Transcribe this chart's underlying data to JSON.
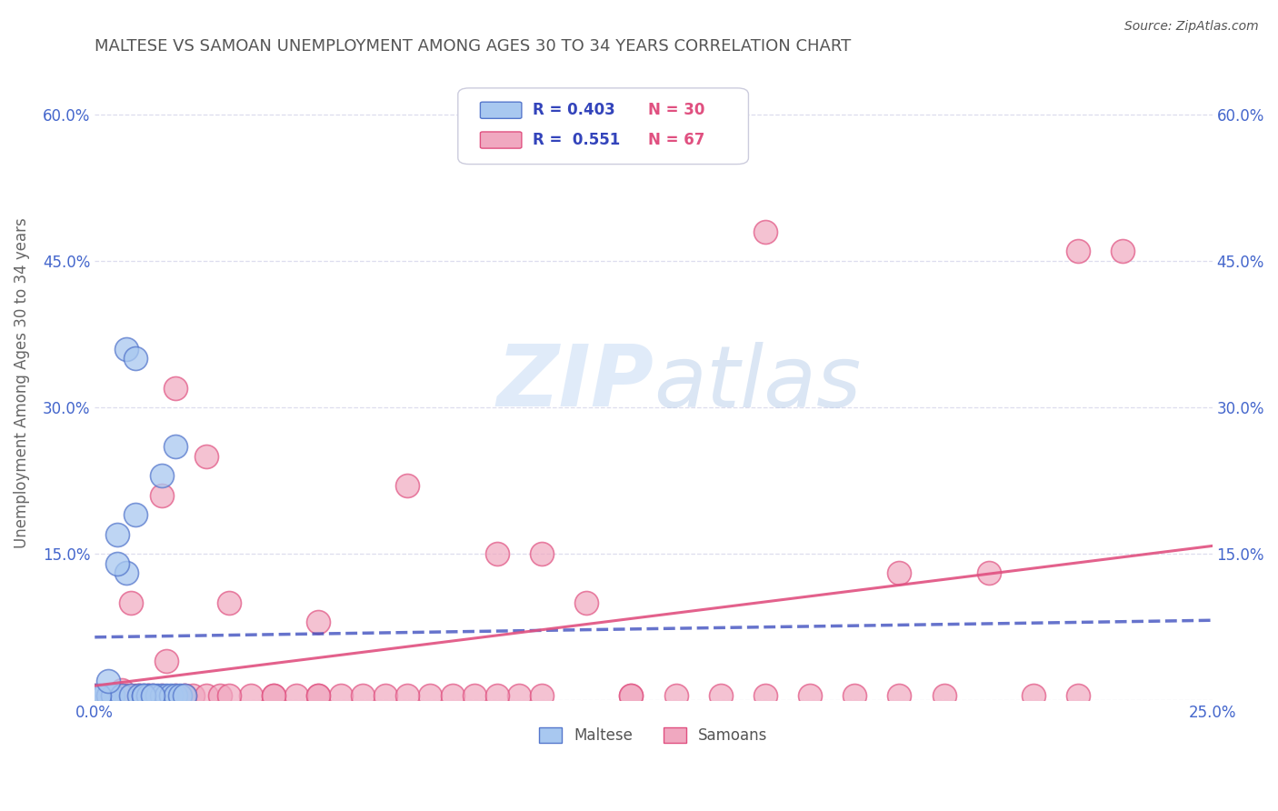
{
  "title": "MALTESE VS SAMOAN UNEMPLOYMENT AMONG AGES 30 TO 34 YEARS CORRELATION CHART",
  "source": "Source: ZipAtlas.com",
  "ylabel": "Unemployment Among Ages 30 to 34 years",
  "xlim": [
    0.0,
    0.25
  ],
  "ylim": [
    0.0,
    0.65
  ],
  "xticks": [
    0.0,
    0.05,
    0.1,
    0.15,
    0.2,
    0.25
  ],
  "xticklabels": [
    "0.0%",
    "",
    "",
    "",
    "",
    "25.0%"
  ],
  "yticks": [
    0.0,
    0.15,
    0.3,
    0.45,
    0.6
  ],
  "yticklabels_left": [
    "",
    "15.0%",
    "30.0%",
    "45.0%",
    "60.0%"
  ],
  "yticklabels_right": [
    "",
    "15.0%",
    "30.0%",
    "45.0%",
    "60.0%"
  ],
  "maltese_color": "#a8c8f0",
  "samoan_color": "#f0a8c0",
  "maltese_edge_color": "#5577cc",
  "samoan_edge_color": "#e05080",
  "maltese_line_color": "#3344bb",
  "samoan_line_color": "#e05080",
  "legend_R_maltese": "R = 0.403",
  "legend_N_maltese": "N = 30",
  "legend_R_samoan": "R =  0.551",
  "legend_N_samoan": "N = 67",
  "maltese_x": [
    0.0,
    0.001,
    0.002,
    0.003,
    0.004,
    0.005,
    0.006,
    0.007,
    0.008,
    0.009,
    0.01,
    0.011,
    0.012,
    0.013,
    0.014,
    0.015,
    0.016,
    0.017,
    0.018,
    0.019,
    0.02,
    0.001,
    0.003,
    0.005,
    0.007,
    0.009,
    0.011,
    0.013,
    0.015,
    0.018
  ],
  "maltese_y": [
    0.005,
    0.005,
    0.005,
    0.005,
    0.005,
    0.17,
    0.005,
    0.13,
    0.005,
    0.19,
    0.005,
    0.005,
    0.005,
    0.005,
    0.005,
    0.005,
    0.005,
    0.005,
    0.005,
    0.005,
    0.005,
    0.005,
    0.02,
    0.14,
    0.36,
    0.35,
    0.005,
    0.005,
    0.23,
    0.26
  ],
  "samoan_x": [
    0.0,
    0.003,
    0.005,
    0.006,
    0.007,
    0.008,
    0.009,
    0.01,
    0.011,
    0.012,
    0.013,
    0.015,
    0.016,
    0.018,
    0.02,
    0.022,
    0.025,
    0.028,
    0.03,
    0.035,
    0.04,
    0.045,
    0.05,
    0.055,
    0.06,
    0.065,
    0.07,
    0.075,
    0.08,
    0.085,
    0.09,
    0.095,
    0.1,
    0.11,
    0.12,
    0.13,
    0.14,
    0.15,
    0.16,
    0.17,
    0.18,
    0.19,
    0.2,
    0.21,
    0.22,
    0.23,
    0.001,
    0.004,
    0.006,
    0.008,
    0.01,
    0.012,
    0.015,
    0.018,
    0.02,
    0.025,
    0.03,
    0.04,
    0.05,
    0.07,
    0.09,
    0.12,
    0.15,
    0.18,
    0.22,
    0.05,
    0.1
  ],
  "samoan_y": [
    0.005,
    0.005,
    0.005,
    0.01,
    0.005,
    0.1,
    0.005,
    0.005,
    0.005,
    0.005,
    0.005,
    0.005,
    0.04,
    0.005,
    0.005,
    0.005,
    0.005,
    0.005,
    0.1,
    0.005,
    0.005,
    0.005,
    0.005,
    0.005,
    0.005,
    0.005,
    0.22,
    0.005,
    0.005,
    0.005,
    0.15,
    0.005,
    0.005,
    0.1,
    0.005,
    0.005,
    0.005,
    0.48,
    0.005,
    0.005,
    0.005,
    0.005,
    0.13,
    0.005,
    0.46,
    0.46,
    0.005,
    0.005,
    0.005,
    0.005,
    0.005,
    0.005,
    0.21,
    0.32,
    0.005,
    0.25,
    0.005,
    0.005,
    0.08,
    0.005,
    0.005,
    0.005,
    0.005,
    0.13,
    0.005,
    0.005,
    0.15
  ],
  "watermark_zip": "ZIP",
  "watermark_atlas": "atlas",
  "background_color": "#ffffff",
  "grid_color": "#ddddee",
  "title_color": "#555555",
  "axis_label_color": "#666666",
  "tick_color_blue": "#4466cc",
  "tick_color_pink": "#dd6688"
}
